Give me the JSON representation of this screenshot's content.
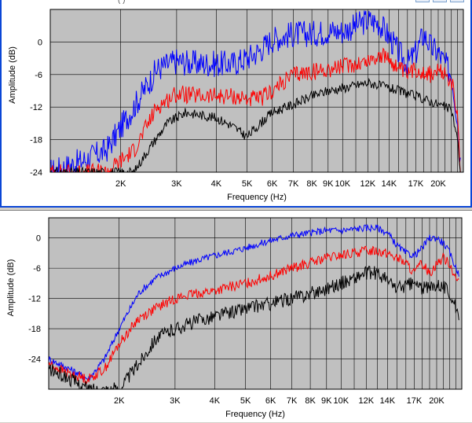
{
  "window_caption_fragment": "(          )",
  "colors": {
    "plot_bg": "#c0c0c0",
    "grid": "#000000",
    "blue": "#0000ff",
    "red": "#ff0000",
    "black": "#000000"
  },
  "chart_data": [
    {
      "type": "line",
      "xscale": "log",
      "xlim": [
        1200,
        24000
      ],
      "ylim": [
        -24,
        6
      ],
      "xlabel": "Frequency (Hz)",
      "ylabel": "Amplitude (dB)",
      "yticks": [
        0,
        -6,
        -12,
        -18,
        -24
      ],
      "xtick_labels": [
        {
          "hz": 2000,
          "label": "2K"
        },
        {
          "hz": 3000,
          "label": "3K"
        },
        {
          "hz": 4000,
          "label": "4K"
        },
        {
          "hz": 5000,
          "label": "5K"
        },
        {
          "hz": 6000,
          "label": "6K"
        },
        {
          "hz": 7000,
          "label": "7K"
        },
        {
          "hz": 8000,
          "label": "8K"
        },
        {
          "hz": 9000,
          "label": "9K"
        },
        {
          "hz": 10000,
          "label": "10K"
        },
        {
          "hz": 12000,
          "label": "12K"
        },
        {
          "hz": 14000,
          "label": "14K"
        },
        {
          "hz": 17000,
          "label": "17K"
        },
        {
          "hz": 20000,
          "label": "20K"
        }
      ],
      "grid": true,
      "series": [
        {
          "color": "blue",
          "noise": 2.5,
          "x": [
            1200,
            1500,
            1800,
            2200,
            2600,
            3000,
            3500,
            4000,
            4500,
            5000,
            5500,
            6000,
            7000,
            8000,
            9000,
            10000,
            11000,
            12000,
            13000,
            14000,
            15000,
            16000,
            17000,
            18000,
            19000,
            20000,
            21000,
            22000,
            23000,
            23500
          ],
          "values": [
            -24,
            -22,
            -20,
            -12,
            -5,
            -3.5,
            -4,
            -4,
            -4,
            -3,
            -1.5,
            0.5,
            1.5,
            1.5,
            2,
            2,
            3,
            4,
            3.5,
            1,
            -2,
            -4,
            -2,
            1.5,
            -1,
            -2,
            -4,
            -6,
            -14,
            -22
          ]
        },
        {
          "color": "red",
          "noise": 1.6,
          "x": [
            1200,
            1500,
            1800,
            2200,
            2600,
            3000,
            3500,
            4000,
            4500,
            5000,
            5500,
            6000,
            7000,
            8000,
            9000,
            10000,
            11000,
            12000,
            13000,
            14000,
            15000,
            16000,
            17000,
            18000,
            19000,
            20000,
            21000,
            22000,
            23000,
            23500
          ],
          "values": [
            -24,
            -24,
            -24,
            -20,
            -12,
            -9.5,
            -10,
            -10,
            -10,
            -10.5,
            -10.5,
            -9,
            -6,
            -5.5,
            -5,
            -4.5,
            -4,
            -3.5,
            -2.5,
            -3,
            -5,
            -6,
            -5,
            -5.5,
            -6,
            -5.5,
            -6,
            -7,
            -14,
            -24
          ]
        },
        {
          "color": "black",
          "noise": 0.9,
          "x": [
            1200,
            1800,
            2200,
            2500,
            2800,
            3200,
            3600,
            4000,
            4500,
            5000,
            5500,
            6000,
            7000,
            8000,
            9000,
            10000,
            11000,
            12000,
            13000,
            14000,
            15000,
            16000,
            17000,
            18000,
            19000,
            20000,
            21000,
            22000,
            23000,
            23500
          ],
          "values": [
            -24,
            -24,
            -24,
            -19,
            -15,
            -13,
            -13.5,
            -14,
            -15.5,
            -17.5,
            -15,
            -13,
            -11.5,
            -10,
            -9,
            -8.5,
            -8,
            -7.5,
            -8,
            -8.5,
            -9,
            -9.5,
            -10,
            -10.5,
            -11,
            -11.5,
            -12,
            -12.5,
            -18,
            -24
          ]
        }
      ]
    },
    {
      "type": "line",
      "xscale": "log",
      "xlim": [
        1200,
        24000
      ],
      "ylim": [
        -30,
        4
      ],
      "xlabel": "Frequency (Hz)",
      "ylabel": "Amplitude (dB)",
      "yticks": [
        0,
        -6,
        -12,
        -18,
        -24
      ],
      "xtick_labels": [
        {
          "hz": 2000,
          "label": "2K"
        },
        {
          "hz": 3000,
          "label": "3K"
        },
        {
          "hz": 4000,
          "label": "4K"
        },
        {
          "hz": 5000,
          "label": "5K"
        },
        {
          "hz": 6000,
          "label": "6K"
        },
        {
          "hz": 7000,
          "label": "7K"
        },
        {
          "hz": 8000,
          "label": "8K"
        },
        {
          "hz": 9000,
          "label": "9K"
        },
        {
          "hz": 10000,
          "label": "10K"
        },
        {
          "hz": 12000,
          "label": "12K"
        },
        {
          "hz": 14000,
          "label": "14K"
        },
        {
          "hz": 17000,
          "label": "17K"
        },
        {
          "hz": 20000,
          "label": "20K"
        }
      ],
      "grid": true,
      "series": [
        {
          "color": "blue",
          "noise": 0.7,
          "x": [
            1200,
            1400,
            1600,
            1800,
            2000,
            2300,
            2600,
            3000,
            3500,
            4000,
            5000,
            6000,
            7000,
            8000,
            9000,
            10000,
            12000,
            13000,
            14000,
            15000,
            16000,
            17000,
            18000,
            19000,
            20000,
            21000,
            22000,
            23000,
            23500
          ],
          "values": [
            -24,
            -26,
            -28,
            -24,
            -18,
            -11,
            -8,
            -6,
            -4.5,
            -3.5,
            -2,
            -0.5,
            0.5,
            1,
            1.5,
            1.5,
            2,
            2,
            1,
            -1.5,
            -3,
            -3.5,
            -2,
            0,
            0,
            -1,
            -3,
            -6,
            -7
          ]
        },
        {
          "color": "red",
          "noise": 1.0,
          "x": [
            1200,
            1400,
            1600,
            1800,
            2000,
            2300,
            2600,
            3000,
            3500,
            4000,
            5000,
            6000,
            7000,
            8000,
            9000,
            10000,
            12000,
            13000,
            14000,
            15000,
            16000,
            17000,
            18000,
            19000,
            20000,
            21000,
            22000,
            23000,
            23500
          ],
          "values": [
            -25,
            -27,
            -28,
            -26,
            -21,
            -16,
            -14,
            -12,
            -11,
            -10.5,
            -9,
            -7.5,
            -6,
            -5,
            -4,
            -3.5,
            -2.5,
            -2.5,
            -3,
            -4,
            -5,
            -7,
            -5,
            -7,
            -5,
            -4,
            -5,
            -8,
            -9
          ]
        },
        {
          "color": "black",
          "noise": 1.4,
          "x": [
            1200,
            1400,
            1600,
            1800,
            2000,
            2300,
            2600,
            3000,
            3500,
            4000,
            5000,
            6000,
            7000,
            8000,
            9000,
            10000,
            12000,
            13000,
            14000,
            15000,
            16000,
            17000,
            18000,
            19000,
            20000,
            21000,
            22000,
            23000,
            23500
          ],
          "values": [
            -26,
            -28,
            -30,
            -30,
            -30,
            -25,
            -20,
            -18,
            -16.5,
            -15.5,
            -14,
            -13,
            -12,
            -11,
            -10,
            -9,
            -7,
            -7,
            -8.5,
            -10,
            -9.5,
            -9,
            -10,
            -10,
            -9,
            -9.5,
            -11,
            -14,
            -17
          ]
        }
      ]
    }
  ]
}
